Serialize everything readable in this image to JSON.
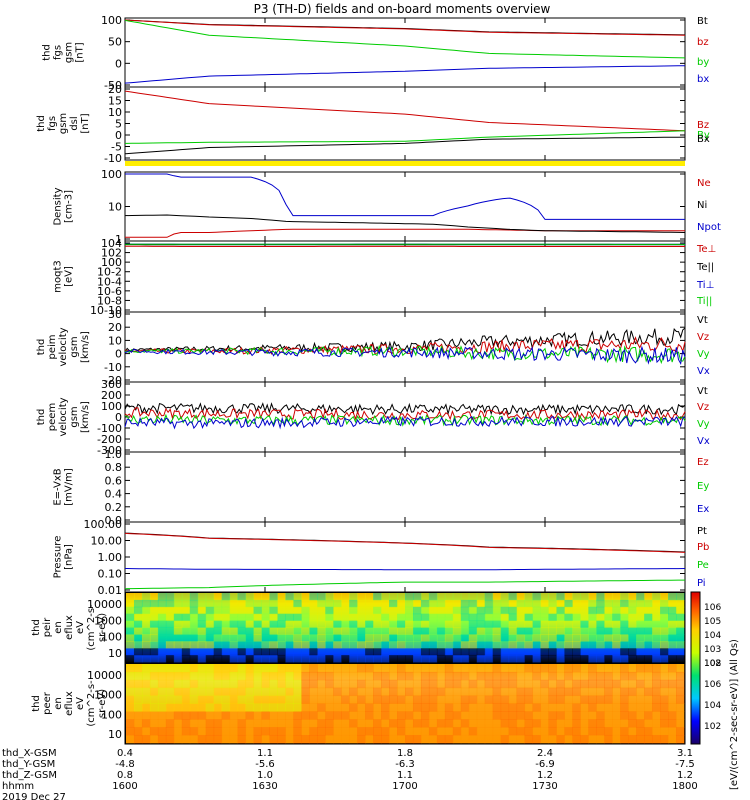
{
  "title": "P3 (TH-D) fields and on-board moments overview",
  "xaxis": {
    "rows": [
      {
        "label": "thd_X-GSM",
        "values": [
          "0.4",
          "1.1",
          "1.8",
          "2.4",
          "3.1"
        ]
      },
      {
        "label": "thd_Y-GSM",
        "values": [
          "-4.8",
          "-5.6",
          "-6.3",
          "-6.9",
          "-7.5"
        ]
      },
      {
        "label": "thd_Z-GSM",
        "values": [
          "0.8",
          "1.0",
          "1.1",
          "1.2",
          "1.2"
        ]
      },
      {
        "label": "hhmm",
        "values": [
          "1600",
          "1630",
          "1700",
          "1730",
          "1800"
        ]
      }
    ],
    "date": "2019 Dec 27"
  },
  "colorbar": {
    "label": "[eV/(cm^2-sec-sr-eV)] (All Qs)",
    "ticks_top": [
      "10^6",
      "10^5",
      "10^4",
      "10^3",
      "10^2"
    ],
    "ticks_bottom": [
      "10^8",
      "10^6",
      "10^4",
      "10^2"
    ]
  },
  "chart_data": [
    {
      "type": "line",
      "panel": "fgs",
      "ylabel": [
        "thd",
        "fgs",
        "gsm",
        "[nT]"
      ],
      "yticks": [
        "100",
        "50",
        "0",
        "-50"
      ],
      "ylim": [
        -70,
        105
      ],
      "x": [
        1600,
        1630,
        1700,
        1730,
        1800
      ],
      "series": [
        {
          "name": "Bt",
          "color": "#000000",
          "values": [
            105,
            93,
            82,
            73,
            65
          ]
        },
        {
          "name": "bz",
          "color": "#cc0000",
          "values": [
            105,
            92,
            81,
            72,
            64
          ]
        },
        {
          "name": "by",
          "color": "#00cc00",
          "values": [
            104,
            64,
            35,
            15,
            3
          ]
        },
        {
          "name": "bx",
          "color": "#0000cc",
          "values": [
            -65,
            -46,
            -33,
            -25,
            -18
          ]
        }
      ]
    },
    {
      "type": "line",
      "panel": "fgs-dsl",
      "ylabel": [
        "thd",
        "fgs",
        "gsm",
        "dsl",
        "[nT]"
      ],
      "yticks": [
        "20",
        "15",
        "10",
        "5",
        "0",
        "-5",
        "-10"
      ],
      "ylim": [
        -12,
        21
      ],
      "x": [
        1600,
        1630,
        1700,
        1730,
        1800
      ],
      "series": [
        {
          "name": "Bz",
          "color": "#cc0000",
          "values": [
            20,
            14,
            9,
            5,
            1
          ]
        },
        {
          "name": "By",
          "color": "#00cc00",
          "values": [
            -5,
            -4.5,
            -4,
            -2,
            1
          ]
        },
        {
          "name": "Bx",
          "color": "#000000",
          "values": [
            -10,
            -7,
            -5,
            -3,
            -2
          ]
        }
      ]
    },
    {
      "type": "line",
      "panel": "density",
      "ylabel": [
        "Density",
        "[cm-3]"
      ],
      "yticks": [
        "100",
        "10",
        "1"
      ],
      "ylog": true,
      "ylim": [
        0.25,
        250
      ],
      "x": [
        1600,
        1615,
        1619,
        1630,
        1645,
        1658,
        1710,
        1722,
        1737,
        1750,
        1800
      ],
      "series": [
        {
          "name": "Ne",
          "color": "#cc0000",
          "values": [
            0.3,
            0.3,
            0.5,
            0.5,
            0.6,
            0.7,
            0.7,
            0.7,
            0.65,
            0.6,
            0.6
          ]
        },
        {
          "name": "Ni",
          "color": "#000000",
          "values": [
            3,
            3.2,
            3,
            2.6,
            2.2,
            1.6,
            1.2,
            0.9,
            0.7,
            0.6,
            0.5
          ]
        },
        {
          "name": "Npot",
          "color": "#0000cc",
          "values": [
            250,
            250,
            180,
            180,
            180,
            3,
            3,
            8,
            20,
            2,
            2
          ]
        }
      ]
    },
    {
      "type": "line",
      "panel": "temperature",
      "ylabel": [
        "moqt3",
        "[eV]"
      ],
      "yticks": [
        "10^4",
        "10^2",
        "10^0",
        "10^-2",
        "10^-4",
        "10^-6",
        "10^-8",
        "10^-10"
      ],
      "ylog": true,
      "x": [
        1600,
        1630,
        1700,
        1730,
        1800
      ],
      "series": [
        {
          "name": "Te⊥",
          "color": "#cc0000",
          "values": [
            4000,
            3500,
            3800,
            3600,
            3500
          ]
        },
        {
          "name": "Te||",
          "color": "#000000",
          "values": [
            9000,
            8500,
            8800,
            8600,
            8500
          ]
        },
        {
          "name": "Ti⊥",
          "color": "#0000cc",
          "values": [
            12000,
            11000,
            11500,
            11000,
            10500
          ]
        },
        {
          "name": "Ti||",
          "color": "#00cc00",
          "values": [
            11000,
            10500,
            11000,
            10800,
            10000
          ]
        }
      ]
    },
    {
      "type": "line",
      "panel": "peim-velocity",
      "ylabel": [
        "thd",
        "peim",
        "velocity",
        "gsm",
        "[km/s]"
      ],
      "yticks": [
        "30",
        "20",
        "10",
        "0",
        "-10",
        "-20"
      ],
      "ylim": [
        -25,
        32
      ],
      "x": [
        1600,
        1630,
        1700,
        1730,
        1800
      ],
      "series": [
        {
          "name": "Vt",
          "color": "#000000",
          "values": [
            1,
            2,
            4,
            8,
            13
          ]
        },
        {
          "name": "Vz",
          "color": "#cc0000",
          "values": [
            0,
            0,
            2,
            4,
            6
          ]
        },
        {
          "name": "Vy",
          "color": "#00cc00",
          "values": [
            0,
            0,
            0,
            -2,
            -3
          ]
        },
        {
          "name": "Vx",
          "color": "#0000cc",
          "values": [
            0,
            -1,
            -1,
            -2,
            -4
          ]
        }
      ]
    },
    {
      "type": "line",
      "panel": "peem-velocity",
      "ylabel": [
        "thd",
        "peem",
        "velocity",
        "gsm",
        "[km/s]"
      ],
      "yticks": [
        "300",
        "200",
        "100",
        "0",
        "-100",
        "-200",
        "-300"
      ],
      "ylim": [
        -300,
        300
      ],
      "x": [
        1600,
        1630,
        1700,
        1730,
        1800
      ],
      "series": [
        {
          "name": "Vt",
          "color": "#000000",
          "values": [
            80,
            80,
            70,
            70,
            70
          ]
        },
        {
          "name": "Vz",
          "color": "#cc0000",
          "values": [
            40,
            30,
            20,
            20,
            20
          ]
        },
        {
          "name": "Vy",
          "color": "#00cc00",
          "values": [
            -20,
            -30,
            -30,
            -30,
            -30
          ]
        },
        {
          "name": "Vx",
          "color": "#0000cc",
          "values": [
            -50,
            -60,
            -40,
            -40,
            -40
          ]
        }
      ]
    },
    {
      "type": "line",
      "panel": "efield",
      "ylabel": [
        "E=-VxB",
        "[mV/m]"
      ],
      "yticks": [
        "1.0",
        "0.8",
        "0.6",
        "0.4",
        "0.2",
        "0.0"
      ],
      "ylim": [
        0,
        1
      ],
      "series": [
        {
          "name": "Ez",
          "color": "#cc0000",
          "values": []
        },
        {
          "name": "Ey",
          "color": "#00cc00",
          "values": []
        },
        {
          "name": "Ex",
          "color": "#0000cc",
          "values": []
        }
      ]
    },
    {
      "type": "line",
      "panel": "pressure",
      "ylabel": [
        "Pressure",
        "[nPa]"
      ],
      "yticks": [
        "100.00",
        "10.00",
        "1.00",
        "0.10",
        "0.01"
      ],
      "ylog": true,
      "ylim": [
        0.01,
        100
      ],
      "x": [
        1600,
        1630,
        1700,
        1730,
        1800
      ],
      "series": [
        {
          "name": "Pt",
          "color": "#000000",
          "values": [
            28,
            14,
            7,
            4,
            2
          ]
        },
        {
          "name": "Pb",
          "color": "#cc0000",
          "values": [
            27,
            13.5,
            6.8,
            3.8,
            1.9
          ]
        },
        {
          "name": "Pe",
          "color": "#00cc00",
          "values": [
            0.012,
            0.014,
            0.03,
            0.03,
            0.04
          ]
        },
        {
          "name": "Pi",
          "color": "#0000cc",
          "values": [
            0.2,
            0.18,
            0.17,
            0.17,
            0.2
          ]
        }
      ]
    },
    {
      "type": "heatmap",
      "panel": "peir",
      "ylabel": [
        "thd",
        "peir",
        "en",
        "eflux",
        "eV",
        "(cm^2-s-",
        "sr-eV)"
      ],
      "yticks": [
        "10000",
        "1000",
        "100",
        "10"
      ],
      "ylog": true
    },
    {
      "type": "heatmap",
      "panel": "peer",
      "ylabel": [
        "thd",
        "peer",
        "en",
        "eflux",
        "eV",
        "(cm^2-s-",
        "sr-eV)"
      ],
      "yticks": [
        "10000",
        "1000",
        "100",
        "10"
      ],
      "ylog": true
    }
  ]
}
